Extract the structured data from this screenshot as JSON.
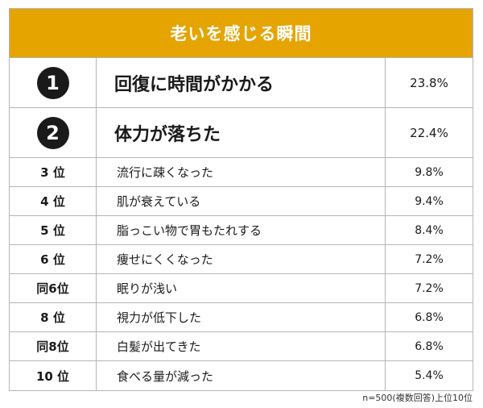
{
  "chart_data": {
    "type": "table",
    "title": "老いを感じる瞬間",
    "rows": [
      {
        "rank": "1",
        "item": "回復に時間がかかる",
        "value": "23.8%"
      },
      {
        "rank": "2",
        "item": "体力が落ちた",
        "value": "22.4%"
      },
      {
        "rank": "3 位",
        "item": "流行に疎くなった",
        "value": "9.8%"
      },
      {
        "rank": "4 位",
        "item": "肌が衰えている",
        "value": "9.4%"
      },
      {
        "rank": "5 位",
        "item": "脂っこい物で胃もたれする",
        "value": "8.4%"
      },
      {
        "rank": "6 位",
        "item": "痩せにくくなった",
        "value": "7.2%"
      },
      {
        "rank": "同6位",
        "item": "眠りが浅い",
        "value": "7.2%"
      },
      {
        "rank": "8 位",
        "item": "視力が低下した",
        "value": "6.8%"
      },
      {
        "rank": "同8位",
        "item": "白髪が出てきた",
        "value": "6.8%"
      },
      {
        "rank": "10 位",
        "item": "食べる量が減った",
        "value": "5.4%"
      }
    ],
    "footnote": "n=500(複数回答)上位10位",
    "header_color": "#e5a400"
  }
}
